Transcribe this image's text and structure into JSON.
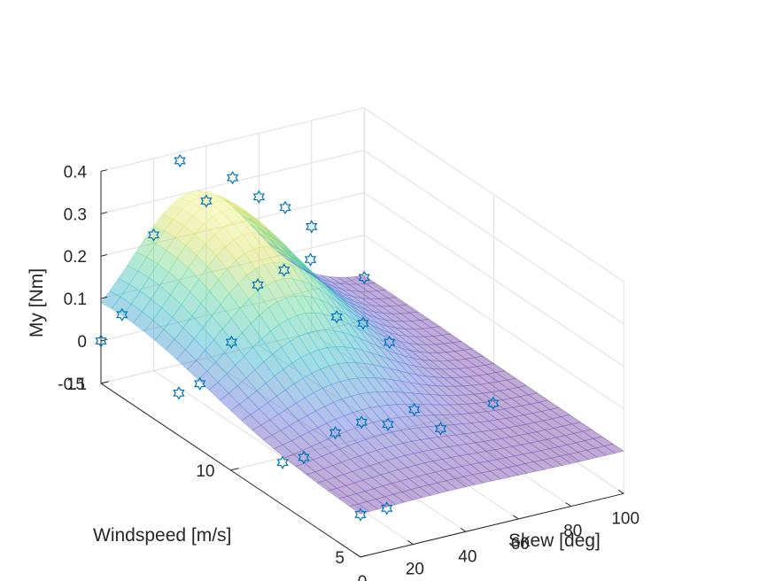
{
  "chart_data": {
    "type": "surface-scatter-3d",
    "title": "",
    "xlabel": "Skew [deg]",
    "ylabel": "Windspeed [m/s]",
    "zlabel": "My [Nm]",
    "xlim": [
      0,
      100
    ],
    "ylim": [
      5,
      15
    ],
    "zlim": [
      -0.1,
      0.4
    ],
    "xticks": [
      "0",
      "20",
      "40",
      "60",
      "80",
      "100"
    ],
    "yticks": [
      "5",
      "10",
      "15"
    ],
    "zticks": [
      "-0.1",
      "0",
      "0.1",
      "0.2",
      "0.3",
      "0.4"
    ],
    "grid": true,
    "colormap": [
      "#7e2f8e",
      "#5a6fd6",
      "#2fb3c8",
      "#58d39a",
      "#d7df5e",
      "#f9fb9a"
    ],
    "surface_alpha": 0.45,
    "marker_color": "#0072bd",
    "marker_symbol": "hexagram",
    "surface_model": {
      "form": "z = peak * exp(-((w-w0)/sw)^2) * exp(-((s-s0)/ss)^2) + base",
      "peak": 0.31,
      "w0": 14.2,
      "sw": 4.6,
      "s0": 35,
      "ss": 32,
      "base": 0.0
    },
    "points": [
      {
        "skew": 0,
        "wind": 15,
        "my": 0.0
      },
      {
        "skew": 8,
        "wind": 15,
        "my": 0.05
      },
      {
        "skew": 20,
        "wind": 15,
        "my": 0.22
      },
      {
        "skew": 30,
        "wind": 15,
        "my": 0.38
      },
      {
        "skew": 40,
        "wind": 15,
        "my": 0.27
      },
      {
        "skew": 50,
        "wind": 15,
        "my": 0.31
      },
      {
        "skew": 60,
        "wind": 15,
        "my": 0.25
      },
      {
        "skew": 70,
        "wind": 15,
        "my": 0.21
      },
      {
        "skew": 80,
        "wind": 15,
        "my": 0.15
      },
      {
        "skew": 100,
        "wind": 15,
        "my": 0.0
      },
      {
        "skew": 0,
        "wind": 12,
        "my": 0.0
      },
      {
        "skew": 8,
        "wind": 12,
        "my": 0.01
      },
      {
        "skew": 20,
        "wind": 12,
        "my": 0.09
      },
      {
        "skew": 30,
        "wind": 12,
        "my": 0.21
      },
      {
        "skew": 40,
        "wind": 12,
        "my": 0.23
      },
      {
        "skew": 50,
        "wind": 12,
        "my": 0.24
      },
      {
        "skew": 60,
        "wind": 12,
        "my": 0.09
      },
      {
        "skew": 70,
        "wind": 12,
        "my": 0.06
      },
      {
        "skew": 80,
        "wind": 12,
        "my": 0.0
      },
      {
        "skew": 0,
        "wind": 8,
        "my": 0.0
      },
      {
        "skew": 8,
        "wind": 8,
        "my": 0.0
      },
      {
        "skew": 20,
        "wind": 8,
        "my": 0.04
      },
      {
        "skew": 30,
        "wind": 8,
        "my": 0.05
      },
      {
        "skew": 40,
        "wind": 8,
        "my": 0.03
      },
      {
        "skew": 50,
        "wind": 8,
        "my": 0.05
      },
      {
        "skew": 60,
        "wind": 8,
        "my": -0.01
      },
      {
        "skew": 80,
        "wind": 8,
        "my": 0.02
      },
      {
        "skew": 0,
        "wind": 5,
        "my": 0.0
      },
      {
        "skew": 10,
        "wind": 5,
        "my": 0.0
      }
    ]
  }
}
